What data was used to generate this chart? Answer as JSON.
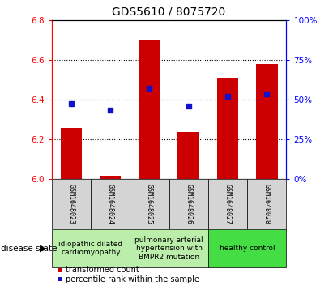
{
  "title": "GDS5610 / 8075720",
  "samples": [
    "GSM1648023",
    "GSM1648024",
    "GSM1648025",
    "GSM1648026",
    "GSM1648027",
    "GSM1648028"
  ],
  "bar_values": [
    6.26,
    6.02,
    6.7,
    6.24,
    6.51,
    6.58
  ],
  "bar_base": 6.0,
  "percentile_values": [
    6.38,
    6.35,
    6.46,
    6.37,
    6.42,
    6.43
  ],
  "ylim_left": [
    6.0,
    6.8
  ],
  "ylim_right": [
    0,
    100
  ],
  "yticks_left": [
    6.0,
    6.2,
    6.4,
    6.6,
    6.8
  ],
  "yticks_right": [
    0,
    25,
    50,
    75,
    100
  ],
  "grid_lines": [
    6.2,
    6.4,
    6.6
  ],
  "bar_color": "#cc0000",
  "percentile_color": "#1111cc",
  "group_boundaries": [
    {
      "start": 0,
      "end": 2,
      "label": "idiopathic dilated\ncardiomyopathy",
      "color": "#bbeeaa"
    },
    {
      "start": 2,
      "end": 4,
      "label": "pulmonary arterial\nhypertension with\nBMPR2 mutation",
      "color": "#bbeeaa"
    },
    {
      "start": 4,
      "end": 6,
      "label": "healthy control",
      "color": "#44dd44"
    }
  ],
  "disease_state_label": "disease state",
  "legend_bar_label": "transformed count",
  "legend_pct_label": "percentile rank within the sample",
  "title_fontsize": 10,
  "tick_fontsize": 7.5,
  "sample_fontsize": 6,
  "group_fontsize": 6.5,
  "legend_fontsize": 7,
  "disease_fontsize": 7.5,
  "bar_width": 0.55,
  "sample_cell_color": "#d4d4d4",
  "bg_color": "#ffffff"
}
